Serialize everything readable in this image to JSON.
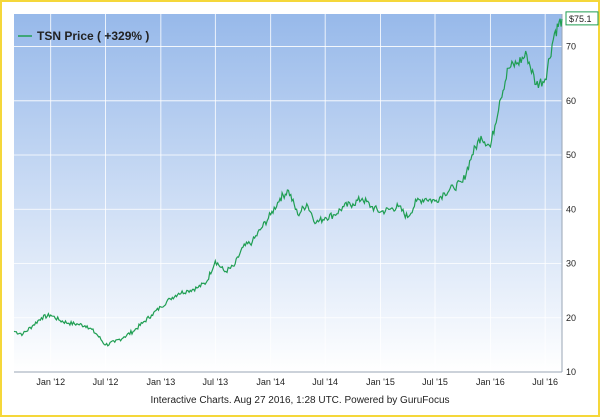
{
  "chart_data": {
    "type": "line",
    "ticker": "TSN",
    "legend_label": "TSN Price ( +329% )",
    "last_value_label": "$75.1",
    "credit": "Interactive Charts. Aug 27 2016, 1:28 UTC. Powered by GuruFocus",
    "x_ticks": [
      "Jan '12",
      "Jul '12",
      "Jan '13",
      "Jul '13",
      "Jan '14",
      "Jul '14",
      "Jan '15",
      "Jul '15",
      "Jan '16",
      "Jul '16"
    ],
    "y_ticks": [
      10,
      20,
      30,
      40,
      50,
      60,
      70
    ],
    "ylim": [
      10,
      76
    ],
    "xlim": [
      "2011-09-01",
      "2016-08-26"
    ],
    "grid": true,
    "legend_position": "top-left",
    "colors": {
      "line": "#1f9e52",
      "background_top": "#97b9ea",
      "background_bottom": "#ffffff",
      "frame": "#f5d73a"
    },
    "series": [
      {
        "name": "TSN Price",
        "x": [
          "2011-09-01",
          "2011-10-01",
          "2011-11-01",
          "2011-12-01",
          "2012-01-01",
          "2012-02-01",
          "2012-03-01",
          "2012-04-01",
          "2012-05-01",
          "2012-06-01",
          "2012-07-01",
          "2012-08-01",
          "2012-09-01",
          "2012-10-01",
          "2012-11-01",
          "2012-12-01",
          "2013-01-01",
          "2013-02-01",
          "2013-03-01",
          "2013-04-01",
          "2013-05-01",
          "2013-06-01",
          "2013-07-01",
          "2013-08-01",
          "2013-09-01",
          "2013-10-01",
          "2013-11-01",
          "2013-12-01",
          "2014-01-01",
          "2014-02-01",
          "2014-03-01",
          "2014-04-01",
          "2014-05-01",
          "2014-06-01",
          "2014-07-01",
          "2014-08-01",
          "2014-09-01",
          "2014-10-01",
          "2014-11-01",
          "2014-12-01",
          "2015-01-01",
          "2015-02-01",
          "2015-03-01",
          "2015-04-01",
          "2015-05-01",
          "2015-06-01",
          "2015-07-01",
          "2015-08-01",
          "2015-09-01",
          "2015-10-01",
          "2015-11-01",
          "2015-12-01",
          "2016-01-01",
          "2016-02-01",
          "2016-03-01",
          "2016-04-01",
          "2016-05-01",
          "2016-06-01",
          "2016-07-01",
          "2016-08-01",
          "2016-08-26"
        ],
        "values": [
          17.5,
          17.0,
          18.5,
          20.0,
          20.5,
          19.5,
          19.0,
          18.8,
          18.5,
          17.0,
          15.0,
          15.5,
          16.5,
          17.5,
          19.0,
          20.5,
          22.0,
          23.5,
          24.5,
          25.0,
          25.5,
          26.5,
          30.5,
          28.5,
          29.5,
          33.0,
          34.0,
          36.5,
          39.0,
          42.0,
          43.5,
          39.0,
          41.0,
          37.5,
          38.5,
          39.0,
          40.5,
          41.0,
          42.0,
          40.5,
          39.5,
          40.0,
          40.5,
          38.5,
          41.5,
          42.0,
          41.5,
          43.0,
          44.0,
          45.0,
          50.0,
          53.5,
          51.5,
          60.0,
          66.0,
          67.0,
          68.5,
          63.0,
          64.0,
          72.5,
          75.1
        ]
      }
    ]
  }
}
